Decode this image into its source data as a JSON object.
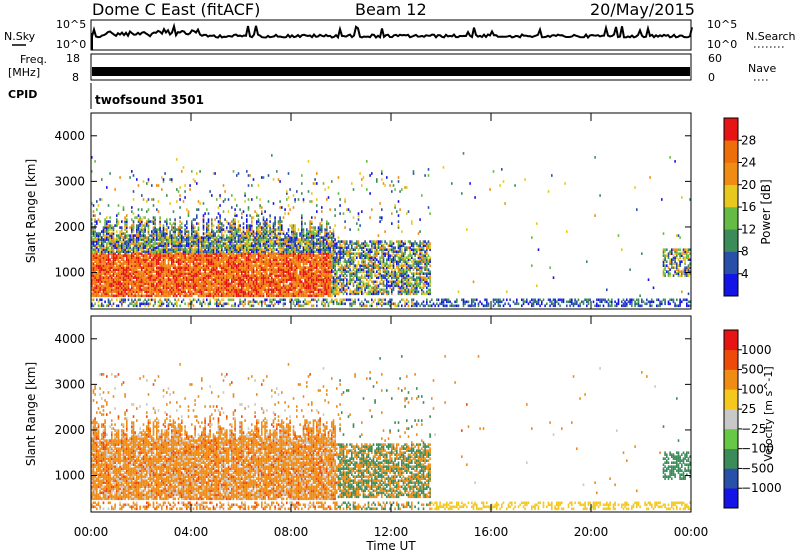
{
  "header": {
    "radar": "Dome C East (fitACF)",
    "beam": "Beam 12",
    "date": "20/May/2015"
  },
  "strips": {
    "nsky_label": "N.Sky",
    "nsky_max": "10^5",
    "nsky_min": "10^0",
    "nsearch_label": "N.Search",
    "freq_label": "Freq.",
    "freq_unit": "[MHz]",
    "freq_max": "18",
    "freq_min": "8",
    "nave_label": "Nave",
    "nave_max": "60",
    "nave_min": "0",
    "cpid_label": "CPID",
    "cpid_value": "twofsound 3501"
  },
  "colors": {
    "power_scale": [
      "#1414e6",
      "#2850a8",
      "#3c8c5a",
      "#66bb44",
      "#e6c81e",
      "#f08c14",
      "#ee6e0a",
      "#e61414"
    ],
    "velocity_scale": [
      "#e61414",
      "#ee4a0a",
      "#f08c14",
      "#f5c81e",
      "#c8c8c8",
      "#66c844",
      "#3c8c5a",
      "#2850a8",
      "#1414e6"
    ]
  },
  "chart_data": [
    {
      "type": "heatmap",
      "id": "power",
      "ylabel": "Slant Range [km]",
      "xlabel": "",
      "x_ticks": [
        "00:00",
        "04:00",
        "08:00",
        "12:00",
        "16:00",
        "20:00",
        "00:00"
      ],
      "y_ticks": [
        "1000",
        "2000",
        "3000",
        "4000"
      ],
      "ylim": [
        200,
        4500
      ],
      "xlim": [
        0,
        24
      ],
      "colorbar": {
        "label": "Power [dB]",
        "ticks": [
          "4",
          "8",
          "12",
          "16",
          "20",
          "24",
          "28"
        ],
        "range": [
          0,
          32
        ]
      }
    },
    {
      "type": "heatmap",
      "id": "velocity",
      "ylabel": "Slant Range [km]",
      "xlabel": "Time UT",
      "x_ticks": [
        "00:00",
        "04:00",
        "08:00",
        "12:00",
        "16:00",
        "20:00",
        "00:00"
      ],
      "y_ticks": [
        "1000",
        "2000",
        "3000",
        "4000"
      ],
      "ylim": [
        200,
        4500
      ],
      "xlim": [
        0,
        24
      ],
      "colorbar": {
        "label": "Velocity [m s^-1]",
        "ticks": [
          "1000",
          "500",
          "100",
          "25",
          "−25",
          "−100",
          "−500",
          "−1000"
        ]
      }
    }
  ]
}
